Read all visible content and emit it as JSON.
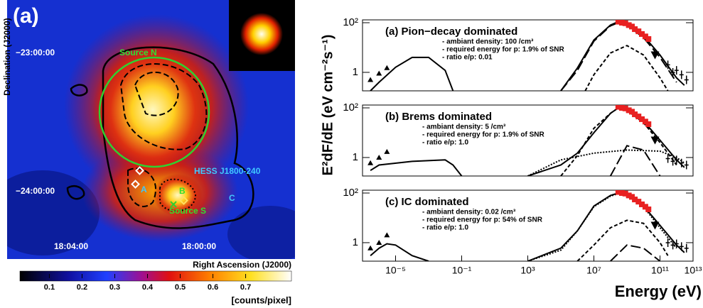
{
  "chart_data": [
    {
      "type": "heatmap",
      "title": "(a)",
      "xlabel": "Right Ascension (J2000)",
      "ylabel": "Declination (J2000)",
      "xtick_labels": [
        "18:04:00",
        "18:00:00"
      ],
      "ytick_labels": [
        "−23:00:00",
        "−24:00:00"
      ],
      "annotations": [
        "Source N",
        "HESS J1800-240",
        "A",
        "B",
        "C",
        "Source S"
      ],
      "colorbar": {
        "label": "[counts/pixel]",
        "xlim": [
          0.01,
          0.84
        ],
        "xticks": [
          0.1,
          0.2,
          0.3,
          0.4,
          0.5,
          0.6,
          0.7
        ]
      }
    },
    {
      "type": "line",
      "xscale": "log",
      "yscale": "log",
      "title": "(a) Pion−decay dominated",
      "notes": [
        "- ambiant density: 100 /cm³",
        "- required energy for p: 1.9% of SNR",
        "- ratio e/p: 0.01"
      ],
      "xlim": [
        1e-07,
        10000000000000.0
      ],
      "ylim": [
        0.18,
        130
      ],
      "yticks": [
        1,
        {
          "value": 100,
          "label": "10²"
        }
      ],
      "series": [
        {
          "kind": "line",
          "dash": "",
          "color": "#000",
          "x": [
            3e-07,
            1e-06,
            1e-05,
            0.0001,
            0.001,
            0.01,
            0.03
          ],
          "values": [
            0.18,
            0.4,
            1.6,
            4,
            4,
            1.2,
            0.18
          ]
        },
        {
          "kind": "line",
          "dash": "",
          "color": "#000",
          "x": [
            100000.0,
            1000000.0,
            10000000.0,
            100000000.0,
            300000000.0,
            1000000000.0,
            10000000000.0,
            100000000000.0,
            1000000000000.0,
            3000000000000.0
          ],
          "values": [
            0.18,
            1.5,
            20,
            80,
            110,
            90,
            30,
            5,
            0.6,
            0.3
          ]
        },
        {
          "kind": "line",
          "dash": "14 5",
          "color": "#000",
          "x": [
            100000.0,
            1000000.0,
            10000000.0,
            100000000.0,
            300000000.0,
            1000000000.0,
            10000000000.0,
            100000000000.0,
            1000000000000.0
          ],
          "values": [
            0.18,
            1.2,
            18,
            75,
            100,
            80,
            25,
            4,
            0.4
          ]
        },
        {
          "kind": "line",
          "dash": "5 3",
          "color": "#000",
          "x": [
            3000000.0,
            10000000.0,
            100000000.0,
            1000000000.0,
            10000000000.0,
            100000000000.0,
            300000000000.0
          ],
          "values": [
            0.18,
            0.8,
            6,
            12,
            5,
            0.6,
            0.18
          ]
        },
        {
          "kind": "square",
          "color": "#e82020",
          "x": [
            300000000.0,
            500000000.0,
            800000000.0,
            1300000000.0,
            2000000000.0,
            3000000000.0,
            5000000000.0,
            8000000000.0,
            13000000000.0,
            20000000000.0
          ],
          "values": [
            110,
            100,
            95,
            80,
            70,
            55,
            45,
            35,
            28,
            22
          ]
        },
        {
          "kind": "triangle",
          "color": "#000",
          "x": [
            3e-07,
            1e-06,
            3e-06
          ],
          "values": [
            0.5,
            0.9,
            1.5
          ]
        },
        {
          "kind": "down",
          "color": "#000",
          "x": [
            50000000000.0
          ],
          "values": [
            5
          ]
        },
        {
          "kind": "point",
          "color": "#000",
          "x": [
            300000000000.0,
            600000000000.0,
            1000000000000.0,
            2000000000000.0,
            4000000000000.0
          ],
          "values": [
            2,
            1,
            1.2,
            0.8,
            0.5
          ]
        }
      ]
    },
    {
      "type": "line",
      "xscale": "log",
      "yscale": "log",
      "title": "(b) Brems dominated",
      "notes": [
        "- ambiant density: 5 /cm³",
        "- required energy for p: 1.9% of SNR",
        "- ratio e/p: 1.0"
      ],
      "xlim": [
        1e-07,
        10000000000000.0
      ],
      "ylim": [
        0.18,
        130
      ],
      "yticks": [
        1,
        {
          "value": 100,
          "label": "10²"
        }
      ],
      "series": [
        {
          "kind": "line",
          "dash": "",
          "color": "#000",
          "x": [
            3e-07,
            1e-06,
            0.0001,
            0.01,
            0.03,
            0.1
          ],
          "values": [
            0.3,
            0.5,
            0.7,
            0.8,
            0.5,
            0.18
          ]
        },
        {
          "kind": "line",
          "dash": "",
          "color": "#000",
          "x": [
            1000.0,
            100000.0,
            1000000.0,
            10000000.0,
            100000000.0,
            300000000.0,
            1000000000.0,
            10000000000.0,
            100000000000.0,
            1000000000000.0,
            3000000000000.0
          ],
          "values": [
            0.18,
            0.5,
            1.5,
            10,
            60,
            100,
            90,
            30,
            5,
            0.8,
            0.4
          ]
        },
        {
          "kind": "line",
          "dash": "5 3",
          "color": "#000",
          "x": [
            100000.0,
            1000000.0,
            10000000.0,
            100000000.0,
            300000000.0,
            1000000000.0,
            10000000000.0,
            100000000000.0,
            1000000000000.0
          ],
          "values": [
            0.18,
            1.2,
            15,
            60,
            100,
            80,
            25,
            4,
            0.5
          ]
        },
        {
          "kind": "line",
          "dash": "2 2",
          "color": "#000",
          "x": [
            1000.0,
            100000.0,
            10000000.0,
            1000000000.0,
            100000000000.0,
            1000000000000.0,
            3000000000000.0
          ],
          "values": [
            0.18,
            0.8,
            1.5,
            2,
            1.8,
            1,
            0.6
          ]
        },
        {
          "kind": "line",
          "dash": "14 5",
          "color": "#000",
          "x": [
            100000000.0,
            1000000000.0,
            10000000000.0,
            100000000000.0
          ],
          "values": [
            0.18,
            3,
            2,
            0.18
          ]
        },
        {
          "kind": "square",
          "color": "#e82020",
          "x": [
            300000000.0,
            500000000.0,
            800000000.0,
            1300000000.0,
            2000000000.0,
            3000000000.0,
            5000000000.0,
            8000000000.0,
            13000000000.0,
            20000000000.0
          ],
          "values": [
            110,
            100,
            95,
            80,
            70,
            55,
            45,
            35,
            28,
            22
          ]
        },
        {
          "kind": "triangle",
          "color": "#000",
          "x": [
            3e-07,
            1e-06,
            3e-06
          ],
          "values": [
            0.6,
            1,
            1.7
          ]
        },
        {
          "kind": "down",
          "color": "#000",
          "x": [
            50000000000.0
          ],
          "values": [
            5
          ]
        },
        {
          "kind": "point",
          "color": "#000",
          "x": [
            300000000000.0,
            600000000000.0,
            1000000000000.0,
            2000000000000.0,
            4000000000000.0
          ],
          "values": [
            0.9,
            0.7,
            0.8,
            0.6,
            0.5
          ]
        }
      ]
    },
    {
      "type": "line",
      "xscale": "log",
      "yscale": "log",
      "title": "(c) IC dominated",
      "notes": [
        "- ambiant density: 0.02 /cm³",
        "- required energy for p: 54% of SNR",
        "- ratio e/p: 1.0"
      ],
      "xlim": [
        1e-07,
        10000000000000.0
      ],
      "ylim": [
        0.18,
        130
      ],
      "yticks": [
        1,
        {
          "value": 100,
          "label": "10²"
        }
      ],
      "xticks": [
        {
          "value": 1e-05,
          "label": "10⁻⁵"
        },
        {
          "value": 0.1,
          "label": "10⁻¹"
        },
        {
          "value": 1000,
          "label": "10³"
        },
        {
          "value": 10000000.0,
          "label": "10⁷"
        },
        {
          "value": 100000000000.0,
          "label": "10¹¹"
        },
        {
          "value": 10000000000000.0,
          "label": "10¹³"
        }
      ],
      "xlabel": "Energy (eV)",
      "ylabel": "E²dF/dE (eV cm⁻²s⁻¹)",
      "series": [
        {
          "kind": "line",
          "dash": "",
          "color": "#000",
          "x": [
            3e-07,
            1e-06,
            3e-06,
            1e-05,
            0.0001,
            0.001
          ],
          "values": [
            0.3,
            0.6,
            0.9,
            0.8,
            0.3,
            0.18
          ]
        },
        {
          "kind": "line",
          "dash": "",
          "color": "#000",
          "x": [
            1000.0,
            100000.0,
            1000000.0,
            10000000.0,
            100000000.0,
            300000000.0,
            1000000000.0,
            10000000000.0,
            100000000000.0,
            1000000000000.0,
            3000000000000.0
          ],
          "values": [
            0.18,
            0.6,
            3,
            30,
            80,
            100,
            90,
            30,
            5,
            0.8,
            0.4
          ]
        },
        {
          "kind": "line",
          "dash": "2 2",
          "color": "#000",
          "x": [
            1000.0,
            100000.0,
            1000000.0,
            10000000.0,
            100000000.0,
            300000000.0,
            1000000000.0,
            10000000000.0,
            100000000000.0,
            1000000000000.0
          ],
          "values": [
            0.18,
            0.5,
            3,
            28,
            75,
            95,
            85,
            28,
            4,
            0.6
          ]
        },
        {
          "kind": "line",
          "dash": "5 3",
          "color": "#000",
          "x": [
            1000000.0,
            10000000.0,
            100000000.0,
            1000000000.0,
            10000000000.0,
            100000000000.0,
            300000000000.0
          ],
          "values": [
            0.18,
            0.8,
            4,
            8,
            6,
            1,
            0.3
          ]
        },
        {
          "kind": "line",
          "dash": "14 5",
          "color": "#000",
          "x": [
            100000000.0,
            1000000000.0,
            10000000000.0,
            100000000000.0
          ],
          "values": [
            0.18,
            0.8,
            0.6,
            0.18
          ]
        },
        {
          "kind": "square",
          "color": "#e82020",
          "x": [
            300000000.0,
            500000000.0,
            800000000.0,
            1300000000.0,
            2000000000.0,
            3000000000.0,
            5000000000.0,
            8000000000.0,
            13000000000.0,
            20000000000.0
          ],
          "values": [
            110,
            100,
            95,
            80,
            70,
            55,
            45,
            35,
            28,
            22
          ]
        },
        {
          "kind": "triangle",
          "color": "#000",
          "x": [
            3e-07,
            1e-06,
            3e-06
          ],
          "values": [
            0.6,
            1,
            2
          ]
        },
        {
          "kind": "down",
          "color": "#000",
          "x": [
            50000000000.0
          ],
          "values": [
            5
          ]
        },
        {
          "kind": "point",
          "color": "#000",
          "x": [
            300000000000.0,
            600000000000.0,
            1000000000000.0,
            2000000000000.0,
            4000000000000.0
          ],
          "values": [
            1,
            0.8,
            0.9,
            0.7,
            0.6
          ]
        }
      ]
    }
  ]
}
